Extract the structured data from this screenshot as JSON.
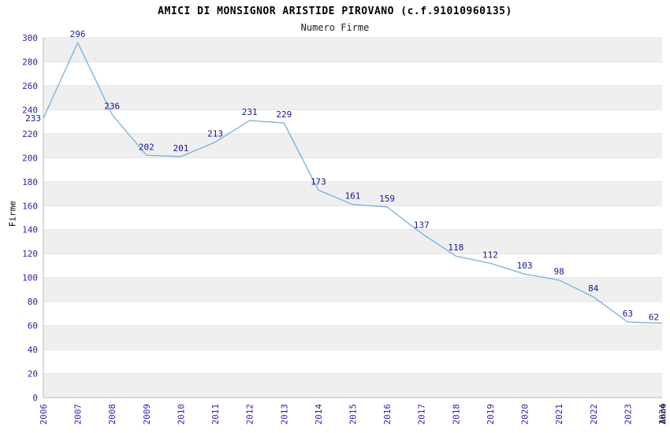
{
  "chart_data": {
    "type": "line",
    "title": "AMICI DI MONSIGNOR ARISTIDE PIROVANO (c.f.91010960135)",
    "subtitle": "Numero Firme",
    "xlabel": "Anno",
    "ylabel": "Firme",
    "x": [
      2006,
      2007,
      2008,
      2009,
      2010,
      2011,
      2012,
      2013,
      2014,
      2015,
      2016,
      2017,
      2018,
      2019,
      2020,
      2021,
      2022,
      2023,
      2024
    ],
    "values": [
      233,
      296,
      236,
      202,
      201,
      213,
      231,
      229,
      173,
      161,
      159,
      137,
      118,
      112,
      103,
      98,
      84,
      63,
      62
    ],
    "ylim": [
      0,
      300
    ],
    "ytick_step": 20,
    "grid": true,
    "legend": "none",
    "colors": {
      "line": "#7aaede",
      "point_label": "#16168c",
      "tick_label": "#2828a0",
      "band_dark": "#efefef",
      "band_light": "#ffffff",
      "gridline": "#e2e2e2",
      "axis_line": "#bbbbbb"
    }
  }
}
